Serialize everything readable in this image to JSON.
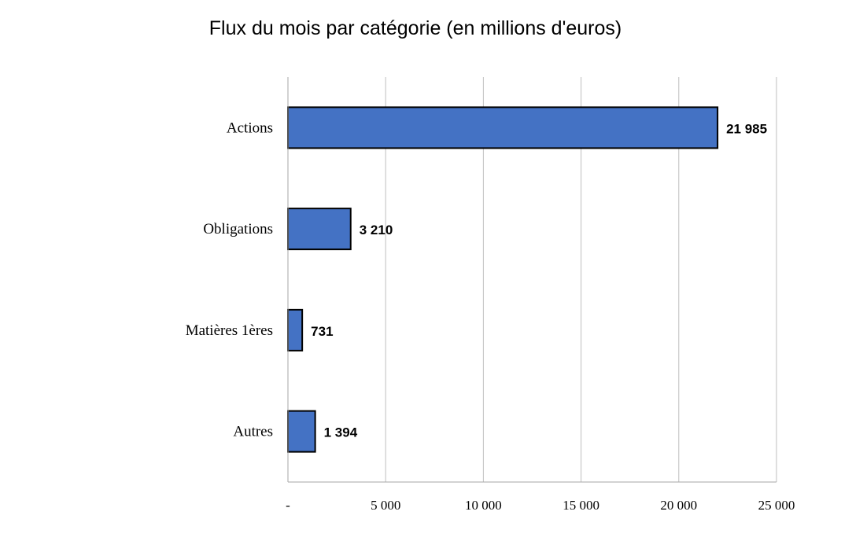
{
  "chart_data": {
    "type": "bar",
    "orientation": "horizontal",
    "title": "Flux du mois par catégorie (en millions d'euros)",
    "categories": [
      "Actions",
      "Obligations",
      "Matières 1ères",
      "Autres"
    ],
    "values": [
      21985,
      3210,
      731,
      1394
    ],
    "data_labels": [
      "21 985",
      "3 210",
      "731",
      "1 394"
    ],
    "xlim": [
      0,
      25000
    ],
    "x_ticks": [
      0,
      5000,
      10000,
      15000,
      20000,
      25000
    ],
    "x_tick_labels": [
      "-",
      "5 000",
      "10 000",
      "15 000",
      "20 000",
      "25 000"
    ],
    "grid": "vertical",
    "bar_color": "#4472C4",
    "bar_edge_color": "#000000",
    "grid_color": "#BFBFBF"
  }
}
